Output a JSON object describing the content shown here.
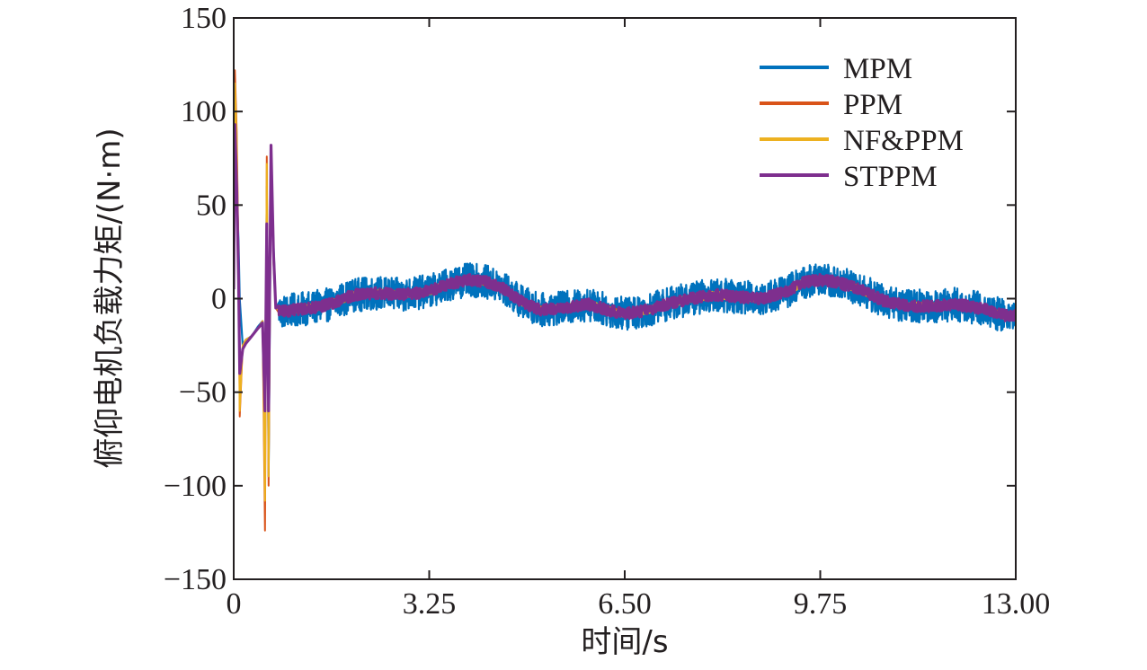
{
  "chart_data": {
    "type": "line",
    "title": "",
    "xlabel": "时间/s",
    "ylabel": "俯仰电机负载力矩/(N·m)",
    "xlim": [
      0,
      13.0
    ],
    "ylim": [
      -150,
      150
    ],
    "xticks": [
      0,
      3.25,
      6.5,
      9.75,
      13.0
    ],
    "xtick_labels": [
      "0",
      "3.25",
      "6.50",
      "9.75",
      "13.00"
    ],
    "yticks": [
      150,
      100,
      50,
      0,
      -50,
      -100,
      -150
    ],
    "ytick_labels": [
      "150",
      "100",
      "50",
      "0",
      "−50",
      "−100",
      "−150"
    ],
    "grid": false,
    "legend_position": "top-right",
    "series": [
      {
        "name": "MPM",
        "color": "#0072bd",
        "noise": 9,
        "x": [
          0,
          0.02,
          0.05,
          0.08,
          0.1,
          0.15,
          0.2,
          0.3,
          0.4,
          0.48,
          0.52,
          0.55,
          0.58,
          0.62,
          0.66,
          0.7,
          0.8,
          1.0,
          1.3,
          1.6,
          2.0,
          2.4,
          2.8,
          3.25,
          3.6,
          3.9,
          4.2,
          4.5,
          4.8,
          5.1,
          5.5,
          5.9,
          6.2,
          6.5,
          6.9,
          7.2,
          7.6,
          8.0,
          8.4,
          8.8,
          9.2,
          9.5,
          9.75,
          10.0,
          10.4,
          10.8,
          11.2,
          11.6,
          12.0,
          12.4,
          12.8,
          13.0
        ],
        "y": [
          5,
          85,
          60,
          30,
          0,
          -25,
          -22,
          -20,
          -15,
          -12,
          -80,
          60,
          -95,
          70,
          30,
          -5,
          -7,
          -6,
          -5,
          -3,
          2,
          3,
          2,
          4,
          8,
          10,
          9,
          5,
          -2,
          -6,
          -5,
          -3,
          -6,
          -8,
          -6,
          -3,
          0,
          2,
          1,
          0,
          4,
          9,
          10,
          9,
          5,
          -1,
          -4,
          -4,
          -3,
          -5,
          -9,
          -9
        ]
      },
      {
        "name": "PPM",
        "color": "#d95319",
        "noise": 2,
        "x": [
          0,
          0.02,
          0.05,
          0.08,
          0.1,
          0.15,
          0.2,
          0.3,
          0.4,
          0.48,
          0.52,
          0.55,
          0.58,
          0.62,
          0.66,
          0.7,
          0.8,
          1.0,
          1.3,
          1.6,
          2.0,
          2.4,
          2.8,
          3.25,
          3.6,
          3.9,
          4.2,
          4.5,
          4.8,
          5.1,
          5.5,
          5.9,
          6.2,
          6.5,
          6.9,
          7.2,
          7.6,
          8.0,
          8.4,
          8.8,
          9.2,
          9.5,
          9.75,
          10.0,
          10.4,
          10.8,
          11.2,
          11.6,
          12.0,
          12.4,
          12.8,
          13.0
        ],
        "y": [
          10,
          122,
          90,
          20,
          -63,
          -25,
          -22,
          -20,
          -16,
          -12,
          -124,
          76,
          -100,
          76,
          20,
          -5,
          -7,
          -6,
          -5,
          -3,
          2,
          3,
          2,
          4,
          8,
          10,
          9,
          5,
          -2,
          -6,
          -5,
          -3,
          -6,
          -8,
          -6,
          -3,
          0,
          2,
          1,
          0,
          4,
          9,
          10,
          9,
          5,
          -1,
          -4,
          -4,
          -3,
          -5,
          -9,
          -9
        ]
      },
      {
        "name": "NF&PPM",
        "color": "#edb120",
        "noise": 2,
        "x": [
          0,
          0.02,
          0.05,
          0.08,
          0.1,
          0.15,
          0.2,
          0.3,
          0.4,
          0.48,
          0.52,
          0.55,
          0.58,
          0.62,
          0.66,
          0.7,
          0.8,
          1.0,
          1.3,
          1.6,
          2.0,
          2.4,
          2.8,
          3.25,
          3.6,
          3.9,
          4.2,
          4.5,
          4.8,
          5.1,
          5.5,
          5.9,
          6.2,
          6.5,
          6.9,
          7.2,
          7.6,
          8.0,
          8.4,
          8.8,
          9.2,
          9.5,
          9.75,
          10.0,
          10.4,
          10.8,
          11.2,
          11.6,
          12.0,
          12.4,
          12.8,
          13.0
        ],
        "y": [
          8,
          115,
          85,
          15,
          -60,
          -25,
          -22,
          -20,
          -16,
          -12,
          -108,
          72,
          -95,
          70,
          20,
          -5,
          -7,
          -6,
          -5,
          -3,
          2,
          3,
          2,
          4,
          8,
          10,
          9,
          5,
          -2,
          -6,
          -5,
          -3,
          -6,
          -8,
          -6,
          -3,
          0,
          2,
          1,
          0,
          4,
          9,
          10,
          9,
          5,
          -1,
          -4,
          -4,
          -3,
          -5,
          -9,
          -9
        ]
      },
      {
        "name": "STPPM",
        "color": "#7e2f8e",
        "noise": 3,
        "x": [
          0,
          0.02,
          0.05,
          0.08,
          0.1,
          0.15,
          0.2,
          0.3,
          0.4,
          0.48,
          0.52,
          0.55,
          0.58,
          0.62,
          0.66,
          0.7,
          0.8,
          1.0,
          1.3,
          1.6,
          2.0,
          2.4,
          2.8,
          3.25,
          3.6,
          3.9,
          4.2,
          4.5,
          4.8,
          5.1,
          5.5,
          5.9,
          6.2,
          6.5,
          6.9,
          7.2,
          7.6,
          8.0,
          8.4,
          8.8,
          9.2,
          9.5,
          9.75,
          10.0,
          10.4,
          10.8,
          11.2,
          11.6,
          12.0,
          12.4,
          12.8,
          13.0
        ],
        "y": [
          5,
          93,
          60,
          10,
          -40,
          -27,
          -24,
          -20,
          -16,
          -13,
          -60,
          40,
          -60,
          82,
          25,
          -5,
          -7,
          -6,
          -5,
          -3,
          2,
          3,
          2,
          4,
          8,
          10,
          9,
          5,
          -2,
          -6,
          -5,
          -3,
          -6,
          -8,
          -6,
          -3,
          0,
          2,
          1,
          0,
          4,
          9,
          10,
          9,
          5,
          -1,
          -4,
          -4,
          -3,
          -5,
          -9,
          -9
        ]
      }
    ]
  }
}
